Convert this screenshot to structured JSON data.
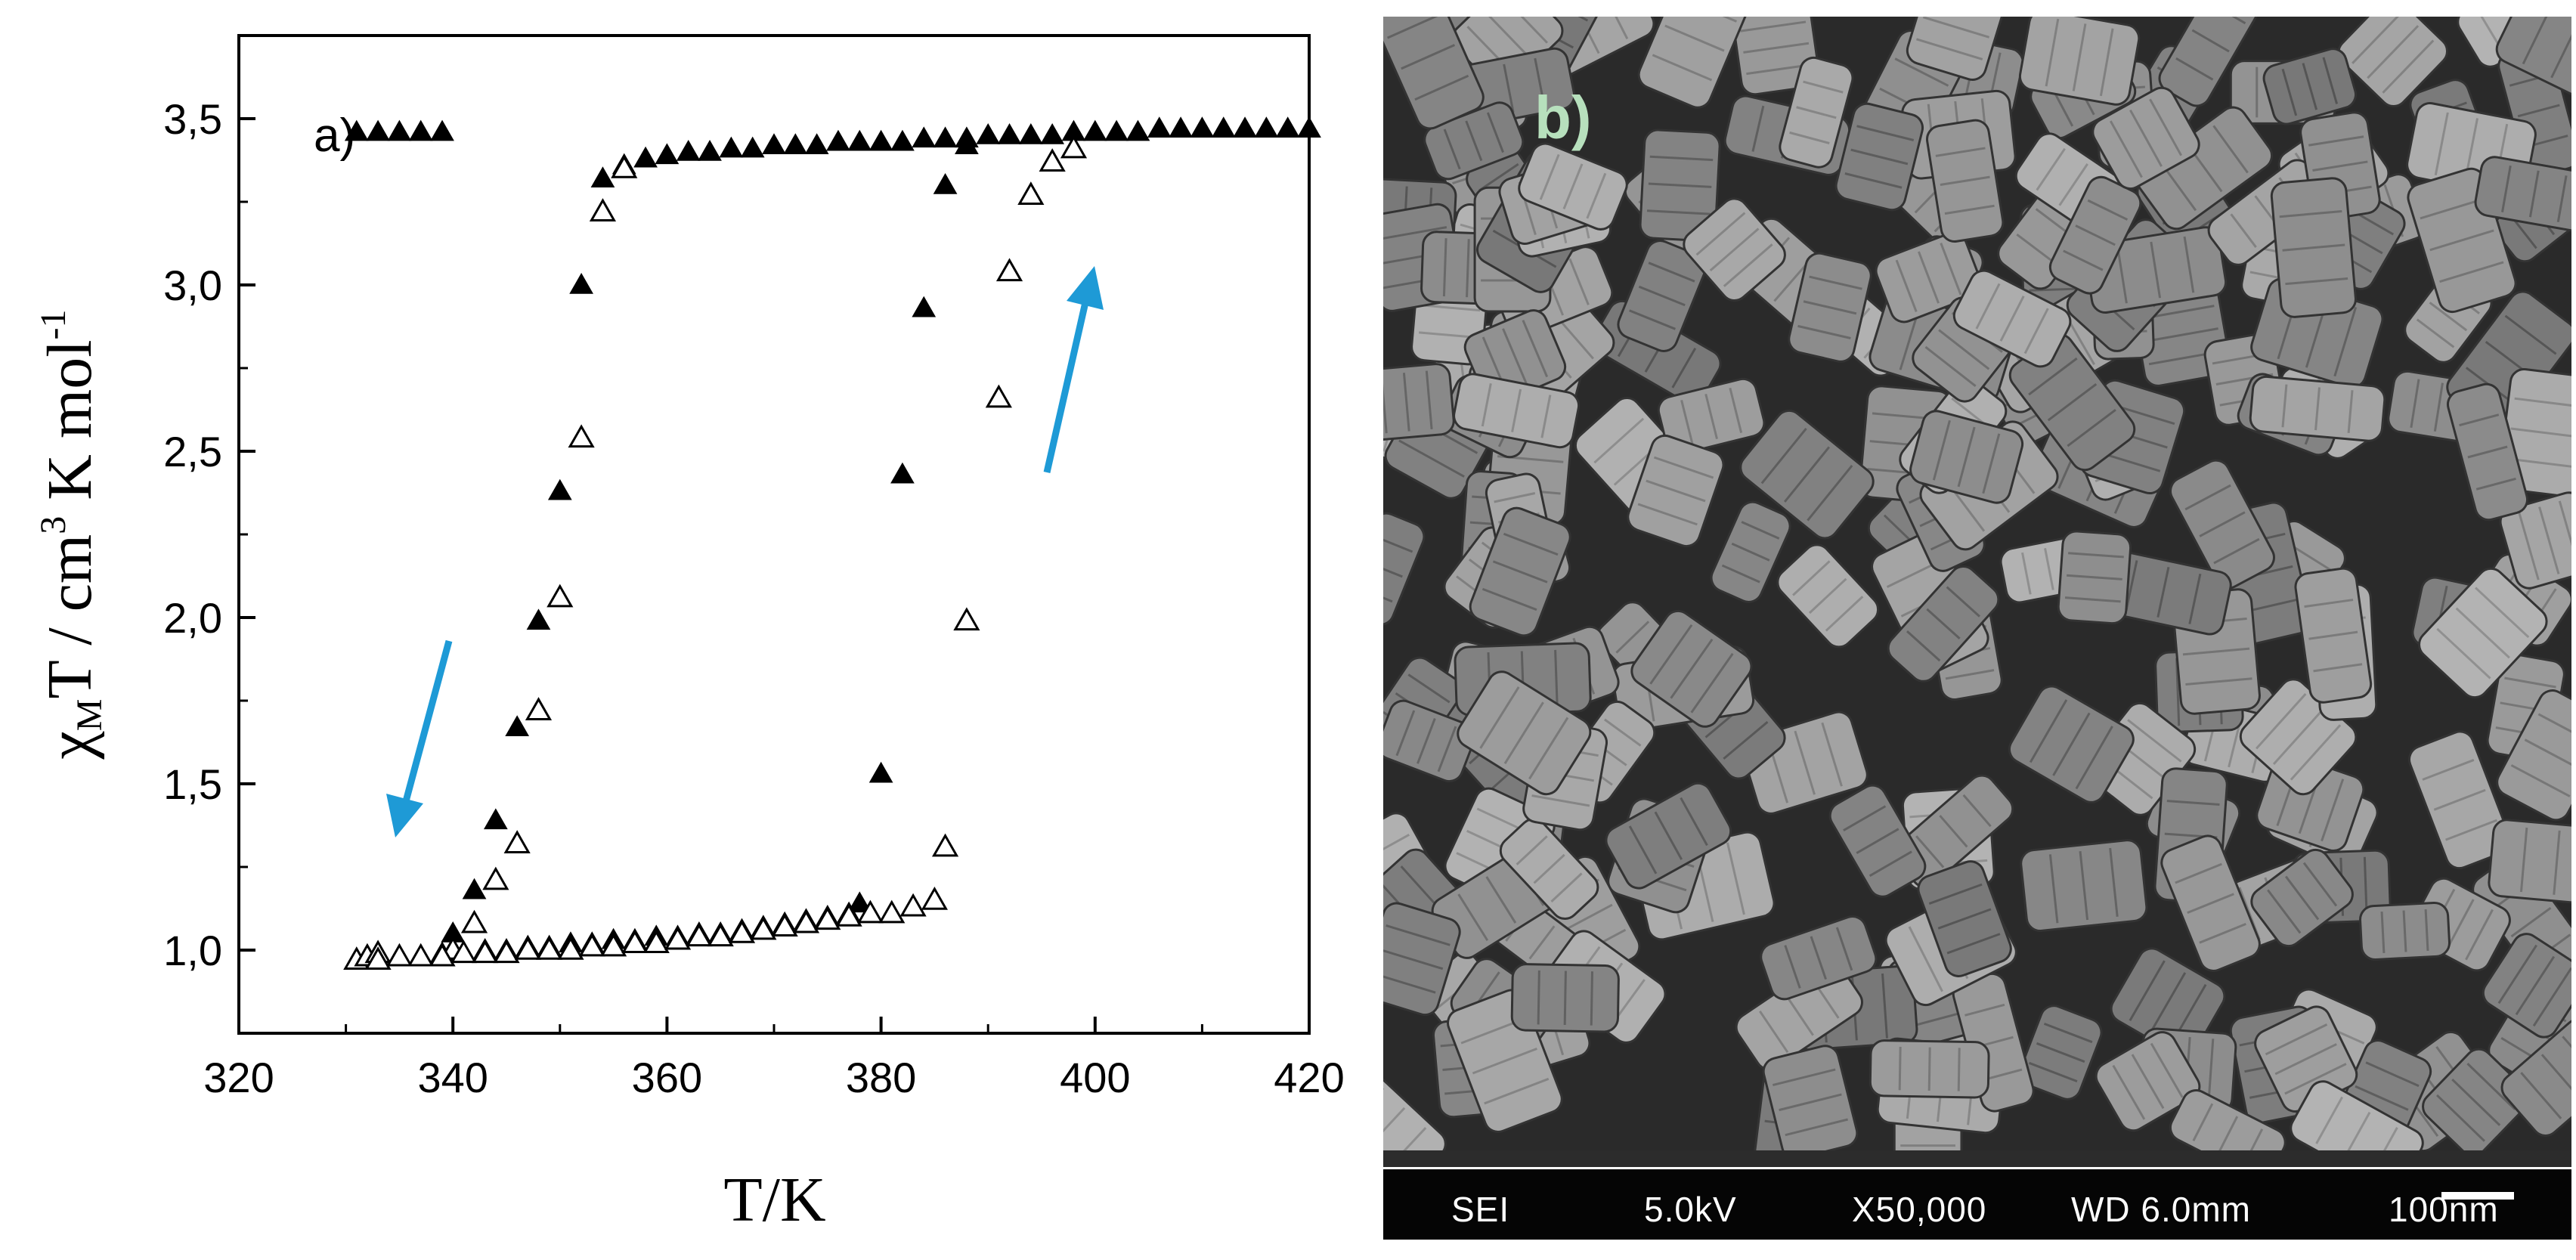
{
  "chart_data": {
    "type": "scatter",
    "panel_label": "a)",
    "xlabel": "T/K",
    "ylabel_main": "χ",
    "ylabel_sub": "M",
    "ylabel_rest": "T / cm",
    "ylabel_sup": "3",
    "ylabel_rest2": " K mol",
    "ylabel_sup2": "-1",
    "xlim": [
      320,
      420
    ],
    "ylim": [
      0.75,
      3.75
    ],
    "xticks": [
      320,
      340,
      360,
      380,
      400,
      420
    ],
    "yticks": [
      1.0,
      1.5,
      2.0,
      2.5,
      3.0,
      3.5
    ],
    "xtick_labels": [
      "320",
      "340",
      "360",
      "380",
      "400",
      "420"
    ],
    "ytick_labels": [
      "1,0",
      "1,5",
      "2,0",
      "2,5",
      "3,0",
      "3,5"
    ],
    "grid": false,
    "series": [
      {
        "marker": "filled-triangle",
        "x": [
          331,
          333,
          335,
          337,
          339,
          340,
          342,
          344,
          346,
          348,
          350,
          352,
          354,
          356,
          358,
          360,
          362,
          364,
          366,
          368,
          370,
          372,
          374,
          376,
          378,
          380,
          382,
          384,
          386,
          388,
          390,
          392,
          394,
          396,
          398,
          400,
          402,
          404,
          406,
          408,
          410,
          412,
          414,
          416,
          418,
          420,
          331,
          333,
          335,
          337,
          339,
          341,
          343,
          345,
          347,
          349,
          351,
          353,
          355,
          357,
          359,
          361,
          363,
          365,
          367,
          369,
          371,
          373,
          375,
          377,
          378,
          380,
          382,
          384,
          386,
          388
        ],
        "y": [
          3.46,
          3.46,
          3.46,
          3.46,
          3.46,
          1.05,
          1.18,
          1.39,
          1.67,
          1.99,
          2.38,
          3.0,
          3.32,
          3.36,
          3.38,
          3.39,
          3.4,
          3.4,
          3.41,
          3.41,
          3.42,
          3.42,
          3.42,
          3.43,
          3.43,
          3.43,
          3.43,
          3.44,
          3.44,
          3.44,
          3.45,
          3.45,
          3.45,
          3.45,
          3.46,
          3.46,
          3.46,
          3.46,
          3.47,
          3.47,
          3.47,
          3.47,
          3.47,
          3.47,
          3.47,
          3.47,
          0.97,
          0.97,
          0.98,
          0.98,
          0.99,
          0.99,
          1.0,
          1.0,
          1.01,
          1.01,
          1.02,
          1.02,
          1.03,
          1.03,
          1.04,
          1.04,
          1.05,
          1.05,
          1.06,
          1.07,
          1.08,
          1.09,
          1.1,
          1.11,
          1.14,
          1.53,
          2.43,
          2.93,
          3.3,
          3.42
        ]
      },
      {
        "marker": "open-triangle",
        "x": [
          331,
          332,
          333,
          340,
          342,
          344,
          346,
          348,
          350,
          352,
          354,
          356,
          333,
          335,
          337,
          339,
          341,
          343,
          345,
          347,
          349,
          351,
          353,
          355,
          357,
          359,
          361,
          363,
          365,
          367,
          369,
          371,
          373,
          375,
          377,
          379,
          381,
          383,
          385,
          386,
          388,
          391,
          392,
          394,
          396,
          398
        ],
        "y": [
          0.97,
          0.98,
          0.99,
          1.0,
          1.08,
          1.21,
          1.32,
          1.72,
          2.06,
          2.54,
          3.22,
          3.35,
          0.97,
          0.98,
          0.98,
          0.98,
          0.99,
          0.99,
          0.99,
          1.0,
          1.0,
          1.0,
          1.01,
          1.01,
          1.02,
          1.02,
          1.03,
          1.04,
          1.04,
          1.05,
          1.06,
          1.07,
          1.08,
          1.09,
          1.1,
          1.11,
          1.11,
          1.13,
          1.15,
          1.31,
          1.99,
          2.66,
          3.04,
          3.27,
          3.37,
          3.41
        ]
      }
    ]
  },
  "arrows": {
    "color": "#1e9ad6"
  },
  "sem_image": {
    "panel_label": "b)",
    "info_bar": [
      "SEI",
      "5.0kV",
      "X50,000",
      "WD 6.0mm",
      "100nm"
    ],
    "label_color": "#b7e0bd"
  }
}
